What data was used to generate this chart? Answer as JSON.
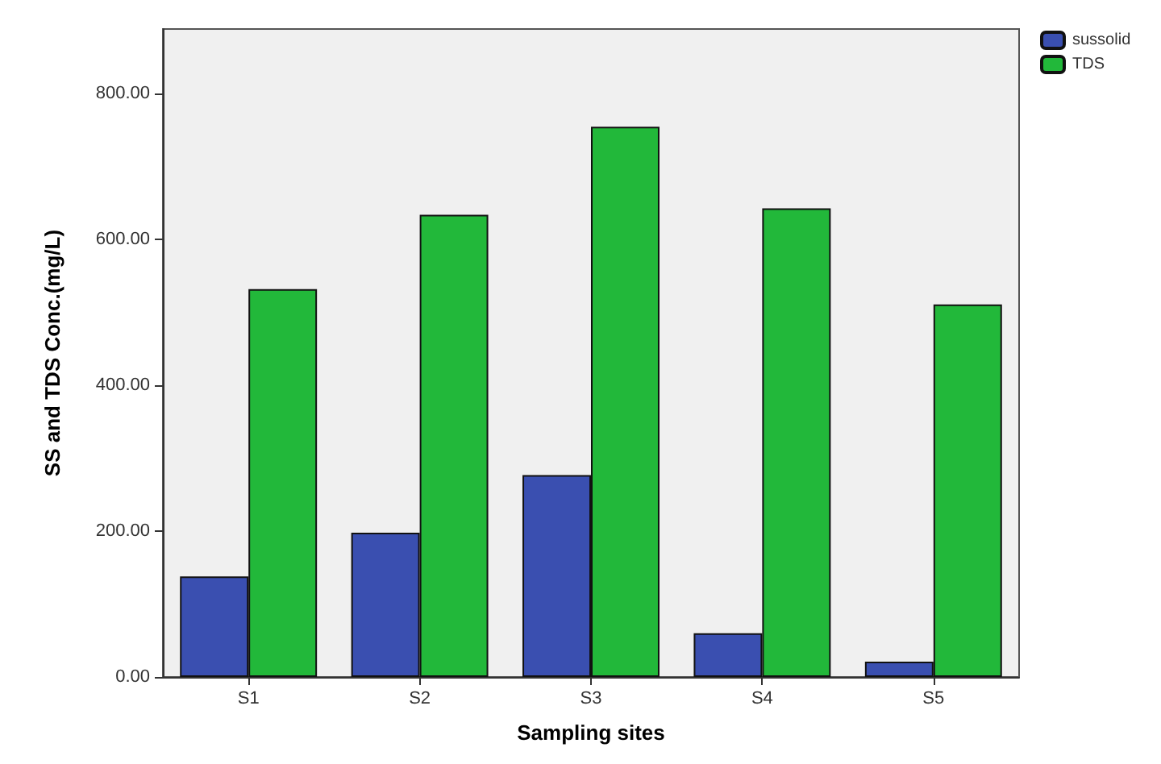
{
  "chart_data": {
    "type": "bar",
    "xlabel": "Sampling sites",
    "ylabel": "SS and TDS Conc.(mg/L)",
    "categories": [
      "S1",
      "S2",
      "S3",
      "S4",
      "S5"
    ],
    "series": [
      {
        "name": "sussolid",
        "color": "#3a4fb0",
        "values": [
          138,
          198,
          277,
          60,
          21
        ]
      },
      {
        "name": "TDS",
        "color": "#22b83a",
        "values": [
          532,
          634,
          755,
          643,
          511
        ]
      }
    ],
    "ylim": [
      0,
      889
    ],
    "yticks": [
      {
        "value": 0,
        "label": "0.00"
      },
      {
        "value": 200,
        "label": "200.00"
      },
      {
        "value": 400,
        "label": "400.00"
      },
      {
        "value": 600,
        "label": "600.00"
      },
      {
        "value": 800,
        "label": "800.00"
      }
    ],
    "grid": false,
    "legend": "top right"
  }
}
